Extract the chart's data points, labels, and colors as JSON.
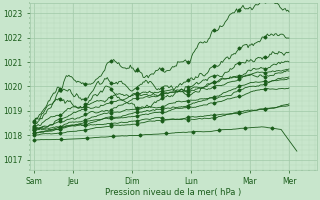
{
  "background_color": "#c8e6cc",
  "grid_major_color": "#a0c8a8",
  "grid_minor_color": "#b8d8bc",
  "line_color": "#1a5c1a",
  "ylabel_text": "Pression niveau de la mer( hPa )",
  "yticks": [
    1017,
    1018,
    1019,
    1020,
    1021,
    1022,
    1023
  ],
  "ylim": [
    1016.6,
    1023.4
  ],
  "xtick_labels": [
    "Sam",
    "Jeu",
    "Dim",
    "Lun",
    "Mar",
    "Mer"
  ],
  "xtick_positions": [
    0.0,
    1.0,
    2.5,
    4.0,
    5.5,
    6.5
  ],
  "xlim": [
    -0.1,
    7.2
  ],
  "figsize": [
    3.2,
    2.0
  ],
  "dpi": 100
}
